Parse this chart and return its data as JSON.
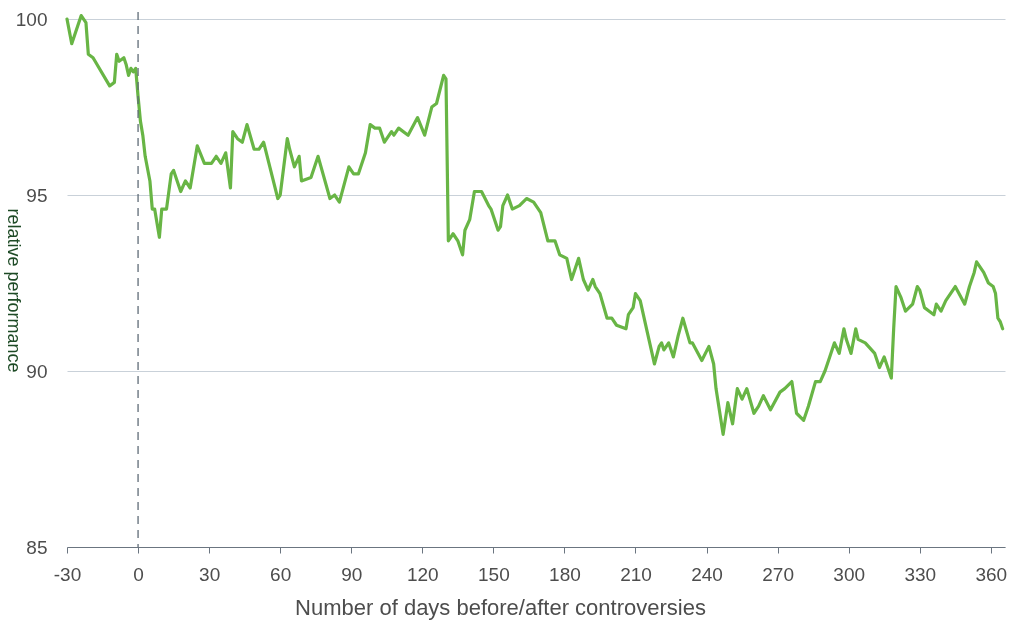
{
  "chart_data": {
    "type": "line",
    "xlabel": "Number of days before/after controversies",
    "ylabel": "relative performance",
    "x": [
      -30,
      -28,
      -24,
      -22,
      -21,
      -19,
      -12,
      -10,
      -9,
      -8,
      -6,
      -5,
      -4,
      -3,
      -2,
      -1,
      0,
      1,
      2,
      3,
      5,
      6,
      7,
      9,
      10,
      12,
      14,
      15,
      18,
      20,
      22,
      25,
      28,
      31,
      33,
      35,
      37,
      39,
      40,
      42,
      44,
      46,
      49,
      51,
      53,
      59,
      60,
      63,
      64,
      66,
      68,
      69,
      73,
      76,
      81,
      83,
      85,
      89,
      91,
      93,
      96,
      98,
      100,
      102,
      104,
      107,
      108,
      110,
      114,
      118,
      121,
      124,
      126,
      129,
      130,
      131,
      133,
      135,
      137,
      138,
      140,
      142,
      145,
      148,
      149,
      152,
      153,
      154,
      156,
      158,
      161,
      164,
      167,
      170,
      173,
      176,
      178,
      181,
      183,
      186,
      188,
      190,
      192,
      193,
      195,
      198,
      200,
      202,
      206,
      207,
      209,
      210,
      212,
      215,
      218,
      220,
      221,
      222,
      224,
      226,
      228,
      230,
      233,
      234,
      238,
      241,
      243,
      244,
      247,
      249,
      251,
      253,
      255,
      257,
      260,
      262,
      264,
      267,
      271,
      273,
      276,
      278,
      281,
      283,
      286,
      288,
      290,
      292,
      294,
      296,
      298,
      299,
      301,
      303,
      304,
      307,
      311,
      313,
      315,
      318,
      319,
      320,
      322,
      324,
      327,
      329,
      330,
      332,
      334,
      336,
      337,
      339,
      341,
      344,
      345,
      349,
      351,
      353,
      354,
      357,
      359,
      361,
      362,
      363,
      364,
      365
    ],
    "series": [
      {
        "color": "#68b545",
        "values": [
          100.0,
          99.3,
          100.1,
          99.9,
          99.0,
          98.9,
          98.1,
          98.2,
          99.0,
          98.8,
          98.9,
          98.7,
          98.4,
          98.6,
          98.5,
          98.6,
          97.8,
          97.1,
          96.7,
          96.1,
          95.4,
          94.6,
          94.6,
          93.8,
          94.6,
          94.6,
          95.6,
          95.7,
          95.1,
          95.4,
          95.2,
          96.4,
          95.9,
          95.9,
          96.1,
          95.9,
          96.2,
          95.2,
          96.8,
          96.6,
          96.5,
          97.0,
          96.3,
          96.3,
          96.5,
          94.9,
          95.0,
          96.6,
          96.3,
          95.8,
          96.1,
          95.4,
          95.5,
          96.1,
          94.9,
          95.0,
          94.8,
          95.8,
          95.6,
          95.6,
          96.2,
          97.0,
          96.9,
          96.9,
          96.5,
          96.8,
          96.7,
          96.9,
          96.7,
          97.2,
          96.7,
          97.5,
          97.6,
          98.4,
          98.3,
          93.7,
          93.9,
          93.7,
          93.3,
          94.0,
          94.3,
          95.1,
          95.1,
          94.7,
          94.6,
          94.0,
          94.1,
          94.7,
          95.0,
          94.6,
          94.7,
          94.9,
          94.8,
          94.5,
          93.7,
          93.7,
          93.3,
          93.2,
          92.6,
          93.2,
          92.6,
          92.3,
          92.6,
          92.4,
          92.2,
          91.5,
          91.5,
          91.3,
          91.2,
          91.6,
          91.8,
          92.2,
          92.0,
          91.1,
          90.2,
          90.7,
          90.8,
          90.6,
          90.8,
          90.4,
          91.0,
          91.5,
          90.8,
          90.8,
          90.3,
          90.7,
          90.2,
          89.5,
          88.2,
          89.1,
          88.5,
          89.5,
          89.2,
          89.5,
          88.8,
          89.0,
          89.3,
          88.9,
          89.4,
          89.5,
          89.7,
          88.8,
          88.6,
          89.0,
          89.7,
          89.7,
          90.0,
          90.4,
          90.8,
          90.5,
          91.2,
          90.9,
          90.5,
          91.2,
          90.9,
          90.8,
          90.5,
          90.1,
          90.4,
          89.8,
          91.2,
          92.4,
          92.1,
          91.7,
          91.9,
          92.4,
          92.3,
          91.8,
          91.7,
          91.6,
          91.9,
          91.7,
          92.0,
          92.3,
          92.4,
          91.9,
          92.4,
          92.8,
          93.1,
          92.8,
          92.5,
          92.4,
          92.2,
          91.5,
          91.4,
          91.2
        ]
      }
    ],
    "xlim": [
      -30,
      366
    ],
    "ylim": [
      85,
      100.2
    ],
    "xticks": [
      -30,
      0,
      30,
      60,
      90,
      120,
      150,
      180,
      210,
      240,
      270,
      300,
      330,
      360
    ],
    "yticks": [
      85,
      90,
      95,
      100
    ],
    "grid": "y",
    "ref_lines": [
      {
        "axis": "x",
        "value": 0,
        "color": "#5f6b77",
        "line_style": "dashed"
      }
    ]
  }
}
